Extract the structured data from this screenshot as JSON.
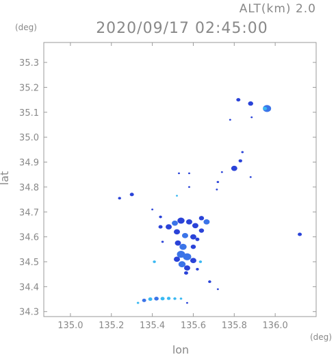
{
  "header": {
    "altitude_label": "ALT(km) 2.0",
    "datetime": "2020/09/17 02:45:00",
    "y_unit": "(deg)",
    "x_unit": "(deg)"
  },
  "chart_data": {
    "type": "scatter",
    "title": "2020/09/17 02:45:00",
    "xlabel": "lon",
    "ylabel": "lat",
    "xlim": [
      134.87,
      136.2
    ],
    "ylim": [
      34.28,
      35.38
    ],
    "xticks": [
      135.0,
      135.2,
      135.4,
      135.6,
      135.8,
      136.0
    ],
    "xtick_labels": [
      "135.0",
      "135.2",
      "135.4",
      "135.6",
      "135.8",
      "136.0"
    ],
    "yticks": [
      34.3,
      34.4,
      34.5,
      34.6,
      34.7,
      34.8,
      34.9,
      35.0,
      35.1,
      35.2,
      35.3
    ],
    "ytick_labels": [
      "34.3",
      "34.4",
      "34.5",
      "34.6",
      "34.7",
      "34.8",
      "34.9",
      "35.0",
      "35.1",
      "35.2",
      "35.3"
    ],
    "grid": false,
    "colors": {
      "weak": "#2a43d8",
      "moderate": "#3b74e8",
      "strong": "#39b8f2"
    },
    "echoes": [
      {
        "lon": 135.82,
        "lat": 35.15,
        "size": 0.02,
        "level": "weak"
      },
      {
        "lon": 135.88,
        "lat": 35.135,
        "size": 0.025,
        "level": "weak"
      },
      {
        "lon": 135.96,
        "lat": 35.115,
        "size": 0.04,
        "level": "moderate"
      },
      {
        "lon": 135.95,
        "lat": 35.115,
        "size": 0.02,
        "level": "strong"
      },
      {
        "lon": 135.885,
        "lat": 35.08,
        "size": 0.01,
        "level": "weak"
      },
      {
        "lon": 135.78,
        "lat": 35.07,
        "size": 0.01,
        "level": "weak"
      },
      {
        "lon": 135.84,
        "lat": 34.94,
        "size": 0.012,
        "level": "weak"
      },
      {
        "lon": 135.83,
        "lat": 34.905,
        "size": 0.018,
        "level": "weak"
      },
      {
        "lon": 135.8,
        "lat": 34.875,
        "size": 0.03,
        "level": "weak"
      },
      {
        "lon": 135.74,
        "lat": 34.86,
        "size": 0.01,
        "level": "weak"
      },
      {
        "lon": 135.72,
        "lat": 34.82,
        "size": 0.012,
        "level": "weak"
      },
      {
        "lon": 135.715,
        "lat": 34.79,
        "size": 0.01,
        "level": "weak"
      },
      {
        "lon": 135.88,
        "lat": 34.84,
        "size": 0.008,
        "level": "weak"
      },
      {
        "lon": 135.3,
        "lat": 34.77,
        "size": 0.02,
        "level": "weak"
      },
      {
        "lon": 135.24,
        "lat": 34.755,
        "size": 0.015,
        "level": "weak"
      },
      {
        "lon": 135.53,
        "lat": 34.855,
        "size": 0.008,
        "level": "weak"
      },
      {
        "lon": 135.58,
        "lat": 34.855,
        "size": 0.008,
        "level": "weak"
      },
      {
        "lon": 135.58,
        "lat": 34.8,
        "size": 0.01,
        "level": "weak"
      },
      {
        "lon": 135.52,
        "lat": 34.765,
        "size": 0.01,
        "level": "strong"
      },
      {
        "lon": 135.4,
        "lat": 34.71,
        "size": 0.01,
        "level": "weak"
      },
      {
        "lon": 135.44,
        "lat": 34.68,
        "size": 0.015,
        "level": "weak"
      },
      {
        "lon": 135.44,
        "lat": 34.64,
        "size": 0.02,
        "level": "weak"
      },
      {
        "lon": 135.48,
        "lat": 34.64,
        "size": 0.03,
        "level": "weak"
      },
      {
        "lon": 135.51,
        "lat": 34.655,
        "size": 0.03,
        "level": "moderate"
      },
      {
        "lon": 135.54,
        "lat": 34.665,
        "size": 0.035,
        "level": "weak"
      },
      {
        "lon": 135.58,
        "lat": 34.66,
        "size": 0.03,
        "level": "weak"
      },
      {
        "lon": 135.61,
        "lat": 34.645,
        "size": 0.03,
        "level": "weak"
      },
      {
        "lon": 135.64,
        "lat": 34.675,
        "size": 0.025,
        "level": "weak"
      },
      {
        "lon": 135.665,
        "lat": 34.66,
        "size": 0.03,
        "level": "moderate"
      },
      {
        "lon": 135.64,
        "lat": 34.625,
        "size": 0.025,
        "level": "weak"
      },
      {
        "lon": 135.52,
        "lat": 34.62,
        "size": 0.03,
        "level": "weak"
      },
      {
        "lon": 135.56,
        "lat": 34.605,
        "size": 0.03,
        "level": "moderate"
      },
      {
        "lon": 135.6,
        "lat": 34.6,
        "size": 0.03,
        "level": "weak"
      },
      {
        "lon": 135.62,
        "lat": 34.59,
        "size": 0.02,
        "level": "weak"
      },
      {
        "lon": 135.45,
        "lat": 34.58,
        "size": 0.012,
        "level": "weak"
      },
      {
        "lon": 135.525,
        "lat": 34.575,
        "size": 0.03,
        "level": "weak"
      },
      {
        "lon": 135.55,
        "lat": 34.56,
        "size": 0.035,
        "level": "moderate"
      },
      {
        "lon": 135.6,
        "lat": 34.56,
        "size": 0.025,
        "level": "weak"
      },
      {
        "lon": 135.54,
        "lat": 34.53,
        "size": 0.04,
        "level": "moderate"
      },
      {
        "lon": 135.57,
        "lat": 34.52,
        "size": 0.04,
        "level": "moderate"
      },
      {
        "lon": 135.52,
        "lat": 34.51,
        "size": 0.03,
        "level": "weak"
      },
      {
        "lon": 135.6,
        "lat": 34.505,
        "size": 0.03,
        "level": "weak"
      },
      {
        "lon": 135.545,
        "lat": 34.49,
        "size": 0.035,
        "level": "moderate"
      },
      {
        "lon": 135.57,
        "lat": 34.475,
        "size": 0.03,
        "level": "weak"
      },
      {
        "lon": 135.635,
        "lat": 34.5,
        "size": 0.015,
        "level": "strong"
      },
      {
        "lon": 135.62,
        "lat": 34.47,
        "size": 0.015,
        "level": "weak"
      },
      {
        "lon": 135.565,
        "lat": 34.455,
        "size": 0.02,
        "level": "weak"
      },
      {
        "lon": 135.41,
        "lat": 34.5,
        "size": 0.015,
        "level": "strong"
      },
      {
        "lon": 135.68,
        "lat": 34.42,
        "size": 0.015,
        "level": "weak"
      },
      {
        "lon": 135.72,
        "lat": 34.39,
        "size": 0.008,
        "level": "weak"
      },
      {
        "lon": 136.12,
        "lat": 34.61,
        "size": 0.02,
        "level": "weak"
      },
      {
        "lon": 135.33,
        "lat": 34.335,
        "size": 0.012,
        "level": "strong"
      },
      {
        "lon": 135.36,
        "lat": 34.345,
        "size": 0.02,
        "level": "moderate"
      },
      {
        "lon": 135.39,
        "lat": 34.35,
        "size": 0.02,
        "level": "strong"
      },
      {
        "lon": 135.42,
        "lat": 34.352,
        "size": 0.022,
        "level": "moderate"
      },
      {
        "lon": 135.45,
        "lat": 34.352,
        "size": 0.02,
        "level": "strong"
      },
      {
        "lon": 135.48,
        "lat": 34.353,
        "size": 0.018,
        "level": "strong"
      },
      {
        "lon": 135.51,
        "lat": 34.352,
        "size": 0.015,
        "level": "strong"
      },
      {
        "lon": 135.54,
        "lat": 34.352,
        "size": 0.012,
        "level": "strong"
      },
      {
        "lon": 135.57,
        "lat": 34.335,
        "size": 0.01,
        "level": "weak"
      }
    ]
  }
}
